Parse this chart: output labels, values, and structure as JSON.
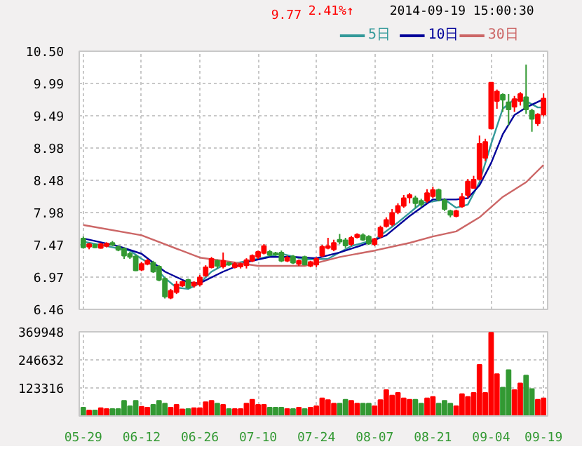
{
  "chart_data": [
    {
      "type": "candlestick",
      "annotations": [
        "9.77",
        "2.41%↑",
        "2014-09-19 15:00:30"
      ],
      "categories": [
        null,
        null,
        null,
        null,
        null,
        null,
        null,
        null,
        null,
        null,
        null,
        null,
        null,
        null,
        null,
        null,
        null,
        null,
        null,
        null,
        null,
        null,
        null,
        null,
        null,
        null,
        null,
        null,
        null,
        null,
        null,
        null,
        null,
        null,
        null,
        null,
        null,
        null,
        null,
        null,
        null,
        null,
        null,
        null,
        null,
        null,
        null,
        null,
        null,
        null,
        null,
        null,
        null,
        null,
        null,
        null,
        null,
        null,
        null,
        null,
        null,
        null,
        null,
        null,
        null,
        null,
        null,
        null,
        null,
        null,
        null,
        null,
        null,
        null,
        null,
        null,
        null,
        null,
        null,
        null
      ],
      "ohlc": [
        [
          7.57,
          7.6,
          7.41,
          7.43
        ],
        [
          7.44,
          7.5,
          7.4,
          7.48
        ],
        [
          7.47,
          7.49,
          7.42,
          7.43
        ],
        [
          7.42,
          7.5,
          7.41,
          7.48
        ],
        [
          7.45,
          7.51,
          7.43,
          7.49
        ],
        [
          7.5,
          7.53,
          7.45,
          7.47
        ],
        [
          7.44,
          7.46,
          7.37,
          7.39
        ],
        [
          7.41,
          7.43,
          7.25,
          7.3
        ],
        [
          7.33,
          7.36,
          7.25,
          7.28
        ],
        [
          7.29,
          7.31,
          7.06,
          7.07
        ],
        [
          7.08,
          7.2,
          7.06,
          7.17
        ],
        [
          7.17,
          7.25,
          7.15,
          7.22
        ],
        [
          7.19,
          7.22,
          7.03,
          7.05
        ],
        [
          7.13,
          7.15,
          6.9,
          6.92
        ],
        [
          6.94,
          6.96,
          6.63,
          6.66
        ],
        [
          6.64,
          6.78,
          6.62,
          6.75
        ],
        [
          6.73,
          6.9,
          6.7,
          6.85
        ],
        [
          6.83,
          6.91,
          6.81,
          6.89
        ],
        [
          6.92,
          6.94,
          6.78,
          6.8
        ],
        [
          6.83,
          6.9,
          6.8,
          6.88
        ],
        [
          6.85,
          7.0,
          6.82,
          6.96
        ],
        [
          6.99,
          7.15,
          6.97,
          7.12
        ],
        [
          7.12,
          7.28,
          7.1,
          7.25
        ],
        [
          7.22,
          7.24,
          7.1,
          7.14
        ],
        [
          7.13,
          7.35,
          7.1,
          7.22
        ],
        [
          7.19,
          7.2,
          7.14,
          7.16
        ],
        [
          7.12,
          7.2,
          7.1,
          7.17
        ],
        [
          7.13,
          7.19,
          7.1,
          7.17
        ],
        [
          7.15,
          7.26,
          7.1,
          7.23
        ],
        [
          7.22,
          7.32,
          7.2,
          7.3
        ],
        [
          7.28,
          7.38,
          7.25,
          7.36
        ],
        [
          7.34,
          7.48,
          7.32,
          7.45
        ],
        [
          7.36,
          7.39,
          7.29,
          7.31
        ],
        [
          7.34,
          7.36,
          7.3,
          7.32
        ],
        [
          7.35,
          7.38,
          7.2,
          7.22
        ],
        [
          7.22,
          7.3,
          7.2,
          7.27
        ],
        [
          7.29,
          7.31,
          7.17,
          7.19
        ],
        [
          7.17,
          7.24,
          7.14,
          7.22
        ],
        [
          7.28,
          7.3,
          7.15,
          7.16
        ],
        [
          7.14,
          7.22,
          7.12,
          7.2
        ],
        [
          7.16,
          7.28,
          7.12,
          7.25
        ],
        [
          7.3,
          7.47,
          7.28,
          7.44
        ],
        [
          7.42,
          7.58,
          7.4,
          7.45
        ],
        [
          7.4,
          7.55,
          7.37,
          7.5
        ],
        [
          7.55,
          7.64,
          7.48,
          7.52
        ],
        [
          7.54,
          7.58,
          7.42,
          7.46
        ],
        [
          7.48,
          7.61,
          7.45,
          7.58
        ],
        [
          7.59,
          7.65,
          7.57,
          7.63
        ],
        [
          7.62,
          7.65,
          7.53,
          7.55
        ],
        [
          7.6,
          7.62,
          7.47,
          7.49
        ],
        [
          7.48,
          7.58,
          7.45,
          7.56
        ],
        [
          7.6,
          7.77,
          7.57,
          7.74
        ],
        [
          7.76,
          7.9,
          7.74,
          7.86
        ],
        [
          7.79,
          8.03,
          7.76,
          7.97
        ],
        [
          7.98,
          8.12,
          7.95,
          8.08
        ],
        [
          8.08,
          8.25,
          8.05,
          8.2
        ],
        [
          8.21,
          8.28,
          8.12,
          8.25
        ],
        [
          8.2,
          8.24,
          8.05,
          8.12
        ],
        [
          8.16,
          8.19,
          8.06,
          8.1
        ],
        [
          8.16,
          8.34,
          8.13,
          8.28
        ],
        [
          8.23,
          8.38,
          8.2,
          8.33
        ],
        [
          8.33,
          8.35,
          8.15,
          8.18
        ],
        [
          8.17,
          8.2,
          8.0,
          8.03
        ],
        [
          8.0,
          8.02,
          7.9,
          7.94
        ],
        [
          7.92,
          8.02,
          7.9,
          8.0
        ],
        [
          8.07,
          8.28,
          8.05,
          8.22
        ],
        [
          8.25,
          8.5,
          8.2,
          8.46
        ],
        [
          8.36,
          8.55,
          8.35,
          8.49
        ],
        [
          8.5,
          9.18,
          8.48,
          9.05
        ],
        [
          8.83,
          9.13,
          8.78,
          9.08
        ],
        [
          9.29,
          10.01,
          9.28,
          10.01
        ],
        [
          9.72,
          9.9,
          9.6,
          9.87
        ],
        [
          9.82,
          9.84,
          9.55,
          9.74
        ],
        [
          9.7,
          9.83,
          9.34,
          9.59
        ],
        [
          9.63,
          9.8,
          9.55,
          9.75
        ],
        [
          9.72,
          9.86,
          9.65,
          9.83
        ],
        [
          9.78,
          10.29,
          9.52,
          9.59
        ],
        [
          9.57,
          9.6,
          9.24,
          9.44
        ],
        [
          9.37,
          9.53,
          9.33,
          9.51
        ],
        [
          9.51,
          9.84,
          9.48,
          9.76
        ]
      ],
      "colors": [
        "#339933",
        "#ff0000",
        "#339933",
        "#ff0000",
        "#ff0000",
        "#339933",
        "#339933",
        "#339933",
        "#339933",
        "#339933",
        "#ff0000",
        "#ff0000",
        "#339933",
        "#339933",
        "#339933",
        "#ff0000",
        "#ff0000",
        "#ff0000",
        "#339933",
        "#ff0000",
        "#ff0000",
        "#ff0000",
        "#ff0000",
        "#339933",
        "#ff0000",
        "#339933",
        "#ff0000",
        "#ff0000",
        "#ff0000",
        "#ff0000",
        "#ff0000",
        "#ff0000",
        "#339933",
        "#339933",
        "#339933",
        "#ff0000",
        "#339933",
        "#ff0000",
        "#339933",
        "#ff0000",
        "#ff0000",
        "#ff0000",
        "#ff0000",
        "#ff0000",
        "#339933",
        "#339933",
        "#ff0000",
        "#ff0000",
        "#339933",
        "#339933",
        "#ff0000",
        "#ff0000",
        "#ff0000",
        "#ff0000",
        "#ff0000",
        "#ff0000",
        "#ff0000",
        "#339933",
        "#339933",
        "#ff0000",
        "#ff0000",
        "#339933",
        "#339933",
        "#339933",
        "#ff0000",
        "#ff0000",
        "#ff0000",
        "#ff0000",
        "#ff0000",
        "#ff0000",
        "#ff0000",
        "#ff0000",
        "#339933",
        "#339933",
        "#ff0000",
        "#ff0000",
        "#339933",
        "#339933",
        "#ff0000",
        "#ff0000"
      ],
      "series": [
        {
          "name": "5日",
          "type": "line",
          "color": "#339999",
          "values": [
            7.52,
            null,
            null,
            null,
            7.45,
            null,
            null,
            null,
            7.38,
            null,
            7.25,
            null,
            7.15,
            null,
            6.95,
            null,
            6.8,
            null,
            6.78,
            null,
            6.87,
            null,
            7.05,
            null,
            7.15,
            null,
            7.18,
            null,
            null,
            null,
            7.25,
            null,
            null,
            null,
            7.33,
            null,
            null,
            null,
            7.24,
            null,
            null,
            null,
            7.25,
            null,
            null,
            null,
            7.45,
            null,
            null,
            null,
            7.55,
            null,
            null,
            null,
            7.82,
            null,
            null,
            null,
            8.12,
            null,
            null,
            null,
            8.18,
            null,
            8.05,
            null,
            8.1,
            null,
            8.45,
            null,
            9.05,
            null,
            9.6,
            null,
            9.75,
            null,
            9.72,
            null,
            9.62,
            9.62
          ]
        },
        {
          "name": "10日",
          "type": "line",
          "color": "#000099",
          "values": [
            7.57,
            null,
            null,
            null,
            null,
            null,
            7.45,
            null,
            null,
            null,
            7.33,
            null,
            null,
            null,
            7.05,
            null,
            null,
            null,
            6.88,
            null,
            6.87,
            null,
            null,
            null,
            7.05,
            null,
            null,
            null,
            7.2,
            null,
            null,
            null,
            7.28,
            null,
            null,
            null,
            7.28,
            null,
            null,
            null,
            7.26,
            null,
            null,
            null,
            7.35,
            null,
            null,
            null,
            7.47,
            null,
            null,
            null,
            7.62,
            null,
            null,
            null,
            7.92,
            null,
            null,
            null,
            8.18,
            null,
            null,
            null,
            8.18,
            null,
            8.2,
            null,
            8.4,
            null,
            8.75,
            null,
            9.2,
            null,
            9.5,
            null,
            9.62,
            null,
            null,
            9.75
          ]
        },
        {
          "name": "30日",
          "type": "line",
          "color": "#cc6666",
          "values": [
            7.78,
            null,
            null,
            null,
            null,
            null,
            null,
            null,
            null,
            null,
            7.62,
            null,
            null,
            null,
            null,
            null,
            null,
            null,
            null,
            null,
            7.27,
            null,
            null,
            null,
            7.22,
            null,
            null,
            null,
            null,
            null,
            7.14,
            null,
            null,
            null,
            null,
            null,
            null,
            null,
            7.14,
            null,
            null,
            null,
            null,
            null,
            7.28,
            null,
            null,
            null,
            null,
            null,
            7.38,
            null,
            null,
            null,
            null,
            null,
            7.5,
            null,
            null,
            null,
            7.6,
            null,
            null,
            null,
            7.68,
            null,
            null,
            null,
            7.9,
            null,
            null,
            null,
            8.22,
            null,
            null,
            null,
            8.45,
            null,
            null,
            8.72
          ]
        }
      ],
      "ylim": [
        6.46,
        10.5
      ],
      "yticks": [
        6.46,
        6.97,
        7.47,
        7.98,
        8.48,
        8.98,
        9.49,
        9.99,
        {
          "value": 10.5,
          "label": "10.50"
        }
      ],
      "grid": true,
      "legend": "top right",
      "tick_labels": "y"
    },
    {
      "type": "bar",
      "categories": [
        "05-29",
        null,
        null,
        null,
        null,
        null,
        null,
        null,
        null,
        null,
        "06-12",
        null,
        null,
        null,
        null,
        null,
        null,
        null,
        null,
        null,
        "06-26",
        null,
        null,
        null,
        null,
        null,
        null,
        null,
        null,
        null,
        "07-10",
        null,
        null,
        null,
        null,
        null,
        null,
        null,
        null,
        null,
        "07-24",
        null,
        null,
        null,
        null,
        null,
        null,
        null,
        null,
        null,
        "08-07",
        null,
        null,
        null,
        null,
        null,
        null,
        null,
        null,
        null,
        "08-21",
        null,
        null,
        null,
        null,
        null,
        null,
        null,
        null,
        null,
        "09-04",
        null,
        null,
        null,
        null,
        null,
        null,
        null,
        null,
        "09-19"
      ],
      "values": [
        37000,
        25000,
        25000,
        35000,
        31000,
        31000,
        31000,
        67000,
        43000,
        67000,
        41000,
        37000,
        49000,
        67000,
        55000,
        37000,
        49000,
        29000,
        31000,
        35000,
        35000,
        61000,
        67000,
        55000,
        49000,
        31000,
        31000,
        31000,
        55000,
        72000,
        49000,
        49000,
        37000,
        37000,
        37000,
        31000,
        31000,
        37000,
        31000,
        37000,
        43000,
        78000,
        70000,
        55000,
        55000,
        72000,
        67000,
        55000,
        55000,
        55000,
        43000,
        70000,
        114000,
        90000,
        102000,
        78000,
        72000,
        72000,
        55000,
        78000,
        84000,
        55000,
        67000,
        55000,
        43000,
        96000,
        84000,
        102000,
        225000,
        102000,
        366000,
        184000,
        125000,
        202000,
        114000,
        143000,
        178000,
        119000,
        72000,
        78000
      ],
      "colors": [
        "#339933",
        "#ff0000",
        "#339933",
        "#ff0000",
        "#ff0000",
        "#339933",
        "#339933",
        "#339933",
        "#339933",
        "#339933",
        "#ff0000",
        "#ff0000",
        "#339933",
        "#339933",
        "#339933",
        "#ff0000",
        "#ff0000",
        "#ff0000",
        "#339933",
        "#ff0000",
        "#ff0000",
        "#ff0000",
        "#ff0000",
        "#339933",
        "#ff0000",
        "#339933",
        "#ff0000",
        "#ff0000",
        "#ff0000",
        "#ff0000",
        "#ff0000",
        "#ff0000",
        "#339933",
        "#339933",
        "#339933",
        "#ff0000",
        "#339933",
        "#ff0000",
        "#339933",
        "#ff0000",
        "#ff0000",
        "#ff0000",
        "#ff0000",
        "#ff0000",
        "#339933",
        "#339933",
        "#ff0000",
        "#ff0000",
        "#339933",
        "#339933",
        "#ff0000",
        "#ff0000",
        "#ff0000",
        "#ff0000",
        "#ff0000",
        "#ff0000",
        "#ff0000",
        "#339933",
        "#339933",
        "#ff0000",
        "#ff0000",
        "#339933",
        "#339933",
        "#339933",
        "#ff0000",
        "#ff0000",
        "#ff0000",
        "#ff0000",
        "#ff0000",
        "#ff0000",
        "#ff0000",
        "#ff0000",
        "#339933",
        "#339933",
        "#ff0000",
        "#ff0000",
        "#339933",
        "#339933",
        "#ff0000",
        "#ff0000"
      ],
      "ylim": [
        0,
        369948
      ],
      "yticks": [
        123316,
        246632,
        369948
      ],
      "grid": true
    }
  ]
}
